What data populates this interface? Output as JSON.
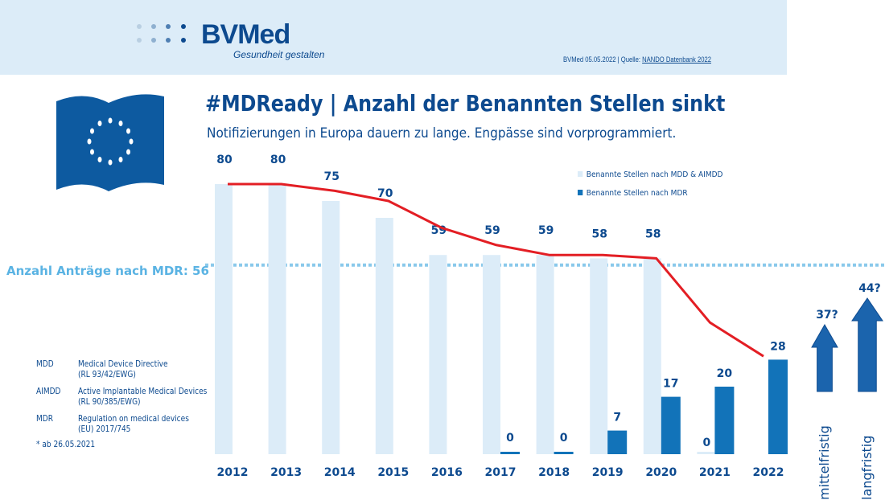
{
  "header": {
    "brand": "BVMed",
    "tagline": "Gesundheit gestalten",
    "source_prefix": "BVMed 05.05.2022 | Quelle: ",
    "source_link": "NANDO Datenbank 2022"
  },
  "title": "#MDReady | Anzahl der Benannten Stellen sinkt",
  "subtitle": "Notifizierungen in Europa dauern zu lange. Engpässe sind vorprogrammiert.",
  "glossary": [
    {
      "abbr": "MDD",
      "line1": "Medical Device Directive",
      "line2": "(RL 93/42/EWG)"
    },
    {
      "abbr": "AIMDD",
      "line1": "Active Implantable Medical Devices",
      "line2": "(RL 90/385/EWG)"
    },
    {
      "abbr": "MDR",
      "line1": "Regulation on medical devices",
      "line2": "(EU) 2017/745"
    }
  ],
  "footnote": "* ab 26.05.2021",
  "colors": {
    "light": "#dcecf8",
    "dark": "#1273b9",
    "line": "#e31e24",
    "text": "#0d4a8f",
    "reference": "#5ab3e3"
  },
  "chart_data": {
    "type": "bar",
    "categories": [
      "2012",
      "2013",
      "2014",
      "2015",
      "2016",
      "2017",
      "2018",
      "2019",
      "2020",
      "2021",
      "2022"
    ],
    "series": [
      {
        "name": "Benannte Stellen nach MDD & AIMDD",
        "values": [
          80,
          80,
          75,
          70,
          59,
          59,
          59,
          58,
          58,
          0,
          null
        ]
      },
      {
        "name": "Benannte Stellen nach MDR",
        "values": [
          null,
          null,
          null,
          null,
          null,
          0,
          0,
          7,
          17,
          20,
          28
        ]
      },
      {
        "type": "line",
        "values": [
          80,
          80,
          78,
          75,
          67,
          62,
          59,
          59,
          58,
          39,
          29
        ]
      }
    ],
    "reference_line": {
      "label": "Anzahl Anträge nach MDR: 56",
      "value": 56
    },
    "projections": [
      {
        "label": "mittelfristig",
        "value": "37?"
      },
      {
        "label": "langfristig",
        "value": "44?"
      }
    ],
    "ylim": [
      0,
      80
    ],
    "grid": false,
    "legend": "top-right"
  }
}
